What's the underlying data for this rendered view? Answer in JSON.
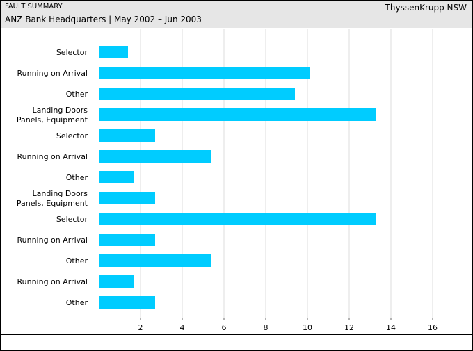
{
  "header": {
    "title": "FAULT SUMMARY",
    "subtitle": "ANZ Bank Headquarters | May 2002 – Jun 2003",
    "company": "ThyssenKrupp NSW"
  },
  "chart_data": {
    "type": "bar",
    "orientation": "horizontal",
    "categories": [
      [
        "Selector"
      ],
      [
        "Running on Arrival"
      ],
      [
        "Other"
      ],
      [
        "Landing Doors",
        "Panels, Equipment"
      ],
      [
        "Selector"
      ],
      [
        "Running on Arrival"
      ],
      [
        "Other"
      ],
      [
        "Landing Doors",
        "Panels, Equipment"
      ],
      [
        "Selector"
      ],
      [
        "Running on Arrival"
      ],
      [
        "Other"
      ],
      [
        "Running on Arrival"
      ],
      [
        "Other"
      ]
    ],
    "values": [
      1.4,
      10.1,
      9.4,
      13.3,
      2.7,
      5.4,
      1.7,
      2.7,
      13.3,
      2.7,
      5.4,
      1.7,
      2.7
    ],
    "xlim": [
      0,
      18
    ],
    "xticks": [
      2,
      4,
      6,
      8,
      10,
      12,
      14,
      16
    ],
    "bar_color": "#00ccff",
    "grid": true,
    "legend": "none"
  }
}
